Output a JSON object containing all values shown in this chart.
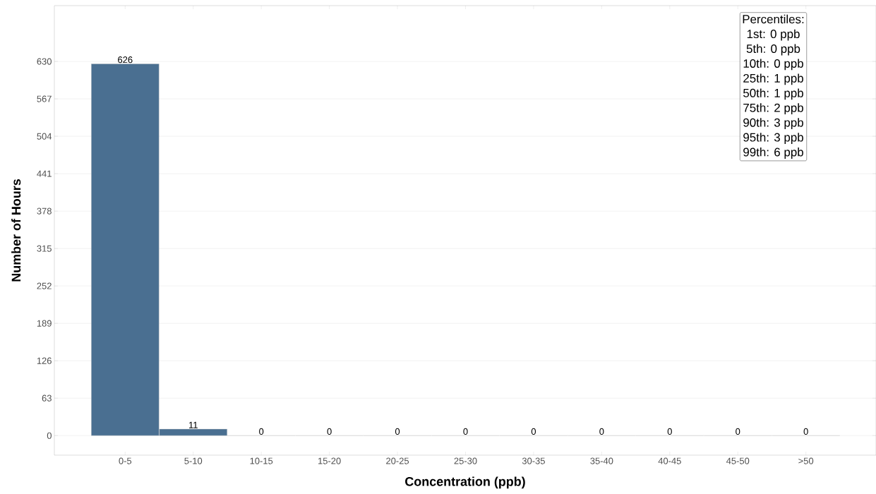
{
  "chart_data": {
    "type": "bar",
    "xlabel": "Concentration (ppb)",
    "ylabel": "Number of Hours",
    "categories": [
      "0-5",
      "5-10",
      "10-15",
      "15-20",
      "20-25",
      "25-30",
      "30-35",
      "35-40",
      "40-45",
      "45-50",
      ">50"
    ],
    "values": [
      626,
      11,
      0,
      0,
      0,
      0,
      0,
      0,
      0,
      0,
      0
    ],
    "color": "#4a6f91",
    "ylim": [
      -33,
      724
    ],
    "yticks": [
      0,
      63,
      126,
      189,
      252,
      315,
      378,
      441,
      504,
      567,
      630
    ],
    "grid": "y",
    "data_labels": true,
    "annotations": [
      "Percentiles:",
      "1st: 0 ppb",
      "5th: 0 ppb",
      "10th: 0 ppb",
      "25th: 1 ppb",
      "50th: 1 ppb",
      "75th: 2 ppb",
      "90th: 3 ppb",
      "95th: 3 ppb",
      "99th: 6 ppb"
    ]
  }
}
